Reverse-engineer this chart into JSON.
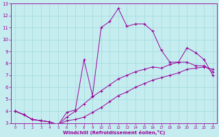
{
  "xlabel": "Windchill (Refroidissement éolien,°C)",
  "xlim": [
    -0.5,
    23.5
  ],
  "ylim": [
    3,
    13
  ],
  "xticks": [
    0,
    1,
    2,
    3,
    4,
    5,
    6,
    7,
    8,
    9,
    10,
    11,
    12,
    13,
    14,
    15,
    16,
    17,
    18,
    19,
    20,
    21,
    22,
    23
  ],
  "yticks": [
    3,
    4,
    5,
    6,
    7,
    8,
    9,
    10,
    11,
    12,
    13
  ],
  "bg_color": "#c5edf0",
  "line_color": "#990099",
  "grid_color": "#a0d8dc",
  "line1_x": [
    0,
    1,
    2,
    3,
    4,
    5,
    6,
    7,
    8,
    9,
    10,
    11,
    12,
    13,
    14,
    15,
    16,
    17,
    18,
    19,
    20,
    21,
    22,
    23
  ],
  "line1_y": [
    4.0,
    3.7,
    3.3,
    3.2,
    3.1,
    2.85,
    3.9,
    4.1,
    8.3,
    5.3,
    11.0,
    11.5,
    12.6,
    11.1,
    11.3,
    11.3,
    10.7,
    9.1,
    8.1,
    8.1,
    9.3,
    8.9,
    8.3,
    7.0
  ],
  "line2_x": [
    0,
    1,
    2,
    3,
    4,
    5,
    6,
    7,
    8,
    9,
    10,
    11,
    12,
    13,
    14,
    15,
    16,
    17,
    18,
    19,
    20,
    21,
    22,
    23
  ],
  "line2_y": [
    4.0,
    3.7,
    3.3,
    3.2,
    3.1,
    2.85,
    3.2,
    3.3,
    3.5,
    3.9,
    4.3,
    4.8,
    5.3,
    5.6,
    6.0,
    6.3,
    6.6,
    6.8,
    7.0,
    7.2,
    7.5,
    7.6,
    7.7,
    7.5
  ],
  "line3_x": [
    0,
    1,
    2,
    3,
    4,
    5,
    6,
    7,
    8,
    9,
    10,
    11,
    12,
    13,
    14,
    15,
    16,
    17,
    18,
    19,
    20,
    21,
    22,
    23
  ],
  "line3_y": [
    4.0,
    3.7,
    3.3,
    3.2,
    3.1,
    2.85,
    3.5,
    4.0,
    4.6,
    5.2,
    5.7,
    6.2,
    6.7,
    7.0,
    7.3,
    7.5,
    7.7,
    7.6,
    7.9,
    8.1,
    8.1,
    7.8,
    7.8,
    7.3
  ]
}
